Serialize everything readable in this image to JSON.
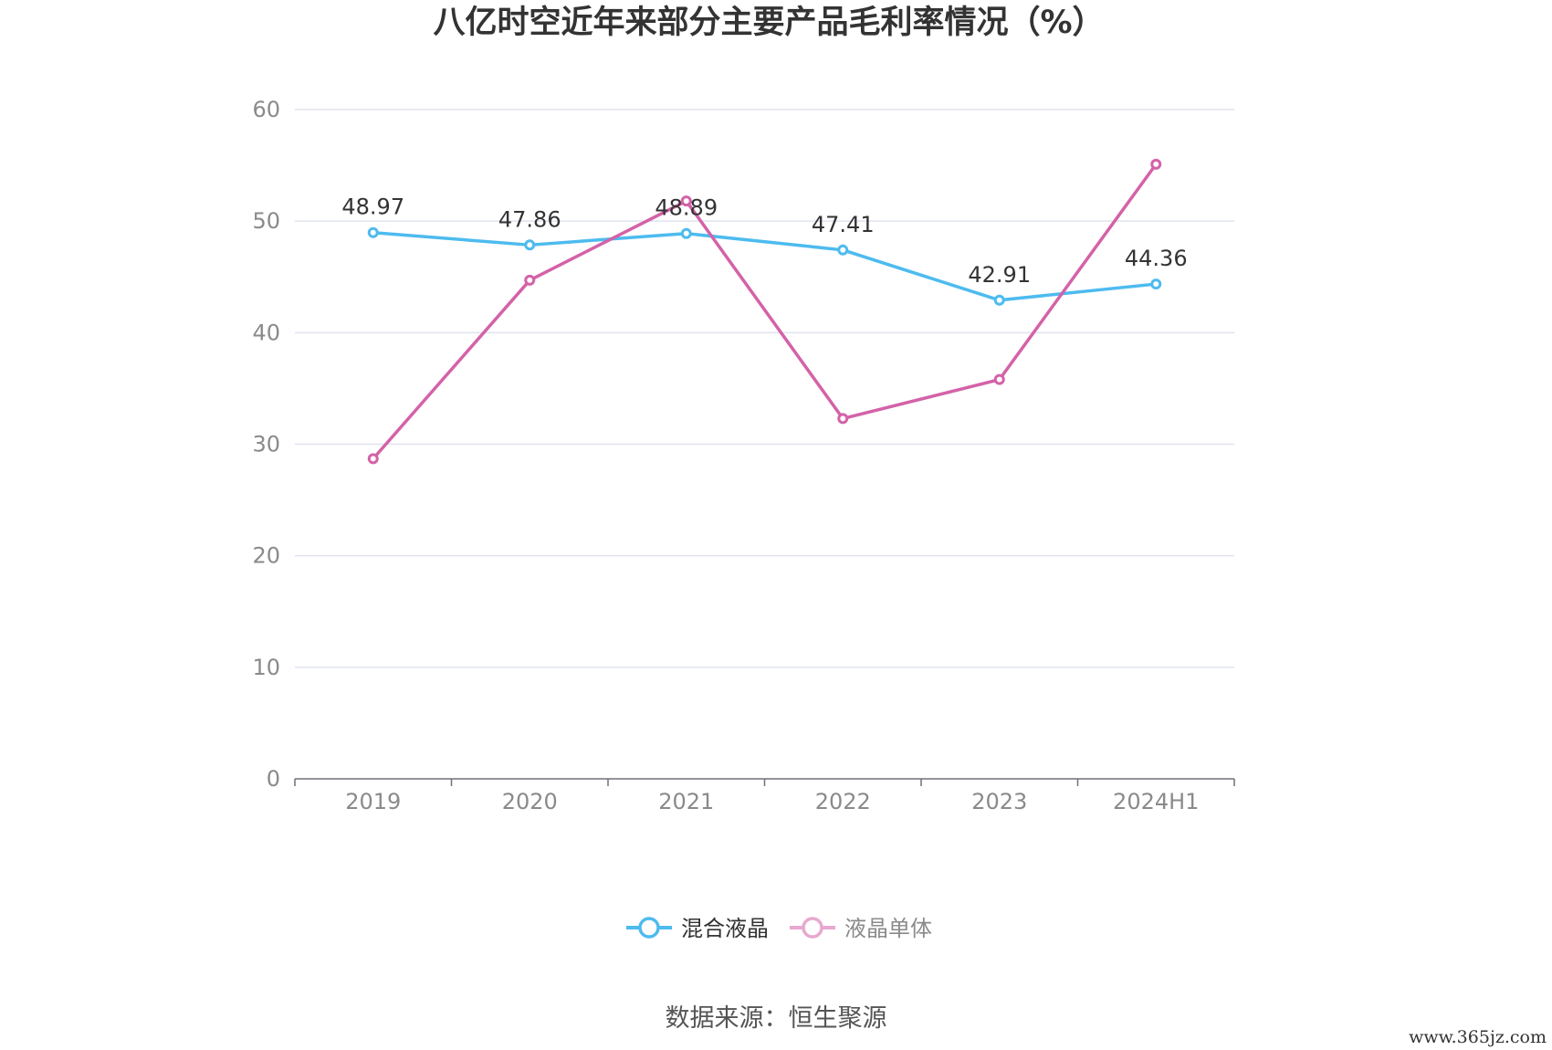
{
  "chart_data": {
    "type": "line",
    "title": "八亿时空近年来部分主要产品毛利率情况（%）",
    "categories": [
      "2019",
      "2020",
      "2021",
      "2022",
      "2023",
      "2024H1"
    ],
    "ylim": [
      0,
      60
    ],
    "yticks": [
      "0",
      "10",
      "20",
      "30",
      "40",
      "50",
      "60"
    ],
    "grid": true,
    "legend_position": "bottom-center",
    "series": [
      {
        "name": "混合液晶",
        "color": "#4dbbef",
        "values": [
          48.97,
          47.86,
          48.89,
          47.41,
          42.91,
          44.36
        ],
        "labels": [
          "48.97",
          "47.86",
          "48.89",
          "47.41",
          "42.91",
          "44.36"
        ]
      },
      {
        "name": "液晶单体",
        "color": "#d462a8",
        "values": [
          28.7,
          44.7,
          51.8,
          32.3,
          35.8,
          55.1
        ]
      }
    ]
  },
  "source": "数据来源：恒生聚源",
  "watermark": "www.365jz.com"
}
